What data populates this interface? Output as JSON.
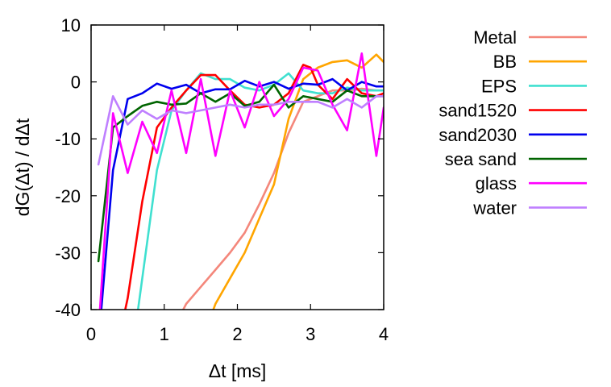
{
  "chart_data": {
    "type": "line",
    "title": "",
    "xlabel": "Δt [ms]",
    "ylabel": "dG(Δt) / dΔt",
    "xlim": [
      0,
      4
    ],
    "ylim": [
      -40,
      10
    ],
    "xticks": [
      0,
      1,
      2,
      3,
      4
    ],
    "yticks": [
      -40,
      -30,
      -20,
      -10,
      0,
      10
    ],
    "grid": false,
    "legend_position": "right",
    "series": [
      {
        "name": "Metal",
        "color": "#f4877b",
        "x": [
          1.1,
          1.3,
          1.5,
          1.7,
          1.9,
          2.1,
          2.3,
          2.5,
          2.7,
          2.9,
          3.1,
          3.3,
          3.5,
          3.7,
          3.9,
          4.0
        ],
        "values": [
          -44,
          -39,
          -36,
          -33,
          -30,
          -26.5,
          -21.5,
          -16,
          -9,
          -3.5,
          -2.5,
          -1.5,
          -1.5,
          -1.2,
          -1.5,
          -1.5
        ]
      },
      {
        "name": "BB",
        "color": "#ffa500",
        "x": [
          1.5,
          1.7,
          1.9,
          2.1,
          2.3,
          2.5,
          2.7,
          2.9,
          3.1,
          3.3,
          3.5,
          3.7,
          3.9,
          4.0
        ],
        "values": [
          -46,
          -39,
          -34.5,
          -30,
          -24,
          -18,
          -6.5,
          0.5,
          2.5,
          3.5,
          3.8,
          2.5,
          4.8,
          3.5
        ]
      },
      {
        "name": "EPS",
        "color": "#40e0d0",
        "x": [
          0.6,
          0.9,
          1.1,
          1.3,
          1.5,
          1.7,
          1.9,
          2.1,
          2.3,
          2.5,
          2.7,
          2.9,
          3.1,
          3.3,
          3.5,
          3.7,
          3.9,
          4.0
        ],
        "values": [
          -44,
          -15.5,
          -5,
          -1.5,
          1.5,
          0.5,
          0.5,
          -1,
          -1.5,
          -0.5,
          1.5,
          -1.5,
          -2,
          -2,
          -1,
          -1.5,
          -1.5,
          -1.5
        ]
      },
      {
        "name": "sand1520",
        "color": "#ff0000",
        "x": [
          0.4,
          0.5,
          0.7,
          0.9,
          1.1,
          1.3,
          1.5,
          1.7,
          1.9,
          2.1,
          2.3,
          2.5,
          2.7,
          2.9,
          3.0,
          3.1,
          3.3,
          3.5,
          3.7,
          3.9,
          4.0
        ],
        "values": [
          -44,
          -38,
          -21,
          -8,
          -4.5,
          -1.5,
          1.2,
          1.2,
          -1.5,
          -4,
          -4.5,
          -4,
          -2,
          3,
          2.5,
          -0.5,
          -3,
          0.5,
          -2,
          -2.5,
          -2
        ]
      },
      {
        "name": "sand2030",
        "color": "#0000ee",
        "x": [
          0.1,
          0.3,
          0.5,
          0.7,
          0.9,
          1.1,
          1.3,
          1.5,
          1.7,
          1.9,
          2.1,
          2.3,
          2.5,
          2.7,
          2.9,
          3.1,
          3.3,
          3.5,
          3.7,
          3.9,
          4.0
        ],
        "values": [
          -46,
          -15.5,
          -3,
          -2,
          -0.3,
          -1.2,
          -0.5,
          -2,
          -1.3,
          -1.3,
          0.2,
          -0.8,
          0,
          -1.2,
          -0.3,
          -0.5,
          0.5,
          -1.5,
          0,
          -0.8,
          -0.8
        ]
      },
      {
        "name": "sea sand",
        "color": "#006400",
        "x": [
          0.1,
          0.3,
          0.5,
          0.7,
          0.9,
          1.1,
          1.3,
          1.5,
          1.7,
          1.9,
          2.1,
          2.3,
          2.5,
          2.7,
          2.9,
          3.1,
          3.3,
          3.5,
          3.7,
          3.9,
          4.0
        ],
        "values": [
          -31.5,
          -8,
          -6,
          -4.2,
          -3.5,
          -4,
          -3.8,
          -2,
          -3.5,
          -2,
          -4.2,
          -3.5,
          -0.5,
          -4.5,
          -2.5,
          -3,
          -3.5,
          -1.5,
          -2.5,
          -2.5,
          -2.5
        ]
      },
      {
        "name": "glass",
        "color": "#ff00ff",
        "x": [
          0.1,
          0.3,
          0.5,
          0.7,
          0.9,
          1.1,
          1.3,
          1.5,
          1.7,
          1.9,
          2.1,
          2.3,
          2.5,
          2.7,
          2.9,
          3.1,
          3.3,
          3.5,
          3.7,
          3.9,
          4.0
        ],
        "values": [
          -44,
          -5.5,
          -16,
          -7,
          -12.5,
          -1.5,
          -12.5,
          0.5,
          -13,
          -1.5,
          -8,
          0,
          -6,
          -3,
          2.5,
          2,
          -4,
          -8.5,
          5,
          -13,
          -4.5
        ]
      },
      {
        "name": "water",
        "color": "#bf7fff",
        "x": [
          0.1,
          0.3,
          0.5,
          0.7,
          0.9,
          1.1,
          1.3,
          1.5,
          1.7,
          1.9,
          2.1,
          2.3,
          2.5,
          2.7,
          2.9,
          3.1,
          3.3,
          3.5,
          3.7,
          3.9,
          4.0
        ],
        "values": [
          -14.5,
          -2.5,
          -7.5,
          -5,
          -6.5,
          -5,
          -5.5,
          -5,
          -4.5,
          -4,
          -4.5,
          -4,
          -4,
          -3.5,
          -3.5,
          -3.5,
          -4.5,
          -3,
          -4.5,
          -2.5,
          -2.5
        ]
      }
    ]
  }
}
